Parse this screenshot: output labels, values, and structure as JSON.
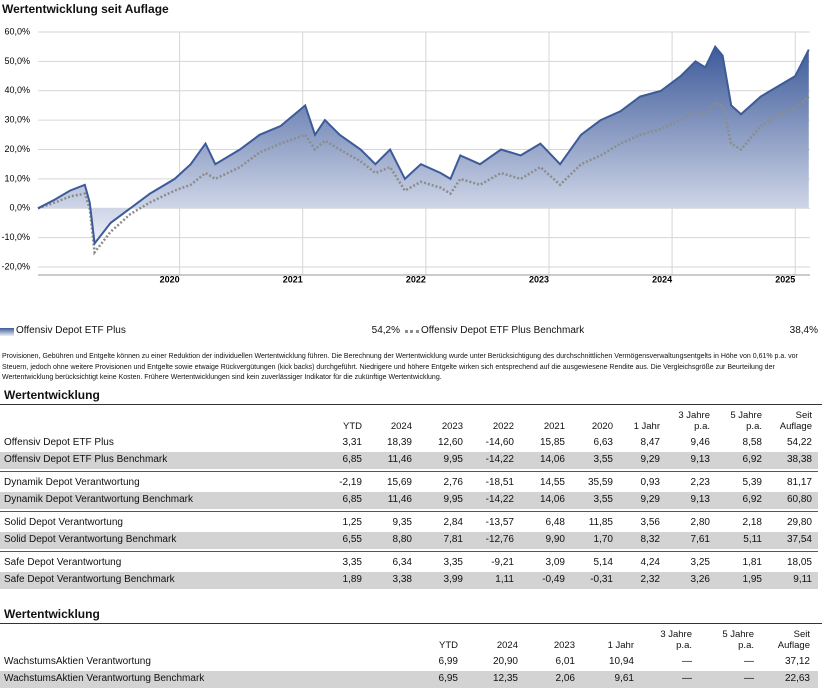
{
  "title": "Wertentwicklung seit Auflage",
  "chart_data": {
    "type": "line",
    "grid": true,
    "xlim": [
      2018.85,
      2025.12
    ],
    "xticks": [
      2020,
      2021,
      2022,
      2023,
      2024,
      2025
    ],
    "ylim": [
      -20,
      60
    ],
    "yticks": [
      {
        "value": -20,
        "label": "-20,0%"
      },
      {
        "value": -10,
        "label": "-10,0%"
      },
      {
        "value": 0,
        "label": "0,0%"
      },
      {
        "value": 10,
        "label": "10,0%"
      },
      {
        "value": 20,
        "label": "20,0%"
      },
      {
        "value": 30,
        "label": "30,0%"
      },
      {
        "value": 40,
        "label": "40,0%"
      },
      {
        "value": 50,
        "label": "50,0%"
      },
      {
        "value": 60,
        "label": "60,0%"
      }
    ],
    "x": [
      2018.85,
      2018.99,
      2019.11,
      2019.23,
      2019.27,
      2019.31,
      2019.44,
      2019.6,
      2019.76,
      2019.96,
      2020.09,
      2020.21,
      2020.29,
      2020.49,
      2020.65,
      2020.82,
      2021.02,
      2021.1,
      2021.18,
      2021.3,
      2021.47,
      2021.59,
      2021.71,
      2021.83,
      2021.96,
      2022.12,
      2022.2,
      2022.28,
      2022.44,
      2022.61,
      2022.77,
      2022.93,
      2023.09,
      2023.26,
      2023.42,
      2023.58,
      2023.74,
      2023.91,
      2024.07,
      2024.19,
      2024.27,
      2024.35,
      2024.41,
      2024.48,
      2024.56,
      2024.72,
      2024.88,
      2025.0,
      2025.11
    ],
    "series": [
      {
        "name": "Offensiv Depot ETF Plus",
        "color": "#3d5a99",
        "fill": true,
        "legend_value": "54,2%",
        "values": [
          0,
          3,
          6,
          8,
          2,
          -12,
          -5,
          0,
          5,
          10,
          15,
          22,
          15,
          20,
          25,
          28,
          35,
          25,
          30,
          25,
          20,
          15,
          20,
          10,
          15,
          12,
          10,
          18,
          15,
          20,
          18,
          22,
          15,
          25,
          30,
          33,
          38,
          40,
          45,
          50,
          48,
          55,
          52,
          35,
          32,
          38,
          42,
          45,
          54
        ]
      },
      {
        "name": "Offensiv Depot ETF Plus Benchmark",
        "color": "#8c8c8c",
        "dotted": true,
        "legend_value": "38,4%",
        "values": [
          0,
          2,
          4,
          5,
          0,
          -15,
          -8,
          -2,
          2,
          6,
          8,
          12,
          10,
          14,
          19,
          22,
          25,
          20,
          23,
          20,
          16,
          12,
          14,
          6,
          9,
          7,
          5,
          10,
          8,
          12,
          10,
          14,
          8,
          15,
          18,
          22,
          25,
          27,
          30,
          33,
          32,
          36,
          35,
          22,
          20,
          28,
          32,
          34,
          38
        ]
      }
    ]
  },
  "disclaimer": "Provisionen, Gebühren und Entgelte können zu einer Reduktion der individuellen Wertentwicklung führen. Die Berechnung der Wertentwicklung wurde unter Berücksichtigung des durchschnittlichen Vermögensverwaltungsentgelts in Höhe von 0,61% p.a. vor Steuern, jedoch ohne weitere Provisionen und Entgelte sowie etwaige Rückvergütungen (kick backs) durchgeführt. Niedrigere und höhere Entgelte wirken sich entsprechend auf die ausgewiesene Rendite aus. Die Vergleichsgröße zur Beurteilung der Wertentwicklung berücksichtigt keine Kosten. Frühere Wertentwicklungen sind kein zuverlässiger Indikator für die zukünftige Wertentwicklung.",
  "tables": [
    {
      "title": "Wertentwicklung",
      "columns": [
        "YTD",
        "2024",
        "2023",
        "2022",
        "2021",
        "2020",
        "1 Jahr",
        "3 Jahre p.a.",
        "5 Jahre p.a.",
        "Seit Auflage"
      ],
      "groups": [
        [
          [
            "Offensiv Depot ETF Plus",
            "3,31",
            "18,39",
            "12,60",
            "-14,60",
            "15,85",
            "6,63",
            "8,47",
            "9,46",
            "8,58",
            "54,22"
          ],
          [
            "Offensiv Depot ETF Plus Benchmark",
            "6,85",
            "11,46",
            "9,95",
            "-14,22",
            "14,06",
            "3,55",
            "9,29",
            "9,13",
            "6,92",
            "38,38"
          ]
        ],
        [
          [
            "Dynamik Depot Verantwortung",
            "-2,19",
            "15,69",
            "2,76",
            "-18,51",
            "14,55",
            "35,59",
            "0,93",
            "2,23",
            "5,39",
            "81,17"
          ],
          [
            "Dynamik Depot Verantwortung Benchmark",
            "6,85",
            "11,46",
            "9,95",
            "-14,22",
            "14,06",
            "3,55",
            "9,29",
            "9,13",
            "6,92",
            "60,80"
          ]
        ],
        [
          [
            "Solid Depot Verantwortung",
            "1,25",
            "9,35",
            "2,84",
            "-13,57",
            "6,48",
            "11,85",
            "3,56",
            "2,80",
            "2,18",
            "29,80"
          ],
          [
            "Solid Depot Verantwortung Benchmark",
            "6,55",
            "8,80",
            "7,81",
            "-12,76",
            "9,90",
            "1,70",
            "8,32",
            "7,61",
            "5,11",
            "37,54"
          ]
        ],
        [
          [
            "Safe Depot Verantwortung",
            "3,35",
            "6,34",
            "3,35",
            "-9,21",
            "3,09",
            "5,14",
            "4,24",
            "3,25",
            "1,81",
            "18,05"
          ],
          [
            "Safe Depot Verantwortung Benchmark",
            "1,89",
            "3,38",
            "3,99",
            "1,11",
            "-0,49",
            "-0,31",
            "2,32",
            "3,26",
            "1,95",
            "9,11"
          ]
        ]
      ]
    },
    {
      "title": "Wertentwicklung",
      "columns": [
        "YTD",
        "2024",
        "2023",
        "1 Jahr",
        "3 Jahre p.a.",
        "5 Jahre p.a.",
        "Seit Auflage"
      ],
      "groups": [
        [
          [
            "WachstumsAktien Verantwortung",
            "6,99",
            "20,90",
            "6,01",
            "10,94",
            "—",
            "—",
            "37,12"
          ],
          [
            "WachstumsAktien Verantwortung Benchmark",
            "6,95",
            "12,35",
            "2,06",
            "9,61",
            "—",
            "—",
            "22,63"
          ]
        ]
      ]
    }
  ]
}
